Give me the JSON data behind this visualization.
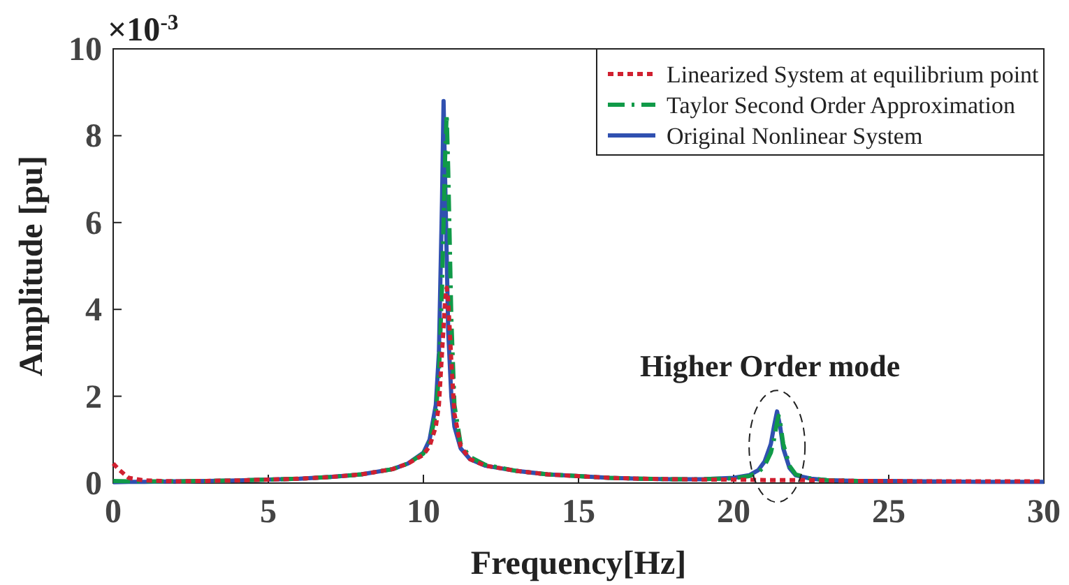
{
  "chart_data": {
    "type": "line",
    "xlabel": "Frequency[Hz]",
    "ylabel": "Amplitude [pu]",
    "xlim": [
      0,
      30
    ],
    "ylim": [
      0,
      10
    ],
    "xticks": [
      0,
      5,
      10,
      15,
      20,
      25,
      30
    ],
    "yticks": [
      0,
      2,
      4,
      6,
      8,
      10
    ],
    "legend": "top right",
    "grid": false,
    "annotations": [
      "×10$^{-3}$",
      {
        "text": "Higher Order mode",
        "x": 21.4,
        "y": 1.65
      }
    ],
    "series": [
      {
        "name": "Linearized System at equilibrium point",
        "color": "#d02030",
        "line_style": "dotted",
        "x": [
          0,
          0.2,
          0.5,
          1,
          2,
          3,
          4,
          5,
          6,
          7,
          8,
          9,
          9.5,
          10,
          10.2,
          10.4,
          10.5,
          10.6,
          10.7,
          10.75,
          10.8,
          10.9,
          11,
          11.2,
          11.5,
          12,
          13,
          14,
          15,
          16,
          17,
          18,
          19,
          20,
          21,
          21.4,
          22,
          23,
          24,
          25,
          26,
          28,
          30
        ],
        "values": [
          0.45,
          0.3,
          0.12,
          0.06,
          0.04,
          0.05,
          0.06,
          0.08,
          0.1,
          0.14,
          0.2,
          0.32,
          0.45,
          0.65,
          0.85,
          1.3,
          1.8,
          3.0,
          4.2,
          4.5,
          4.2,
          2.8,
          1.6,
          0.85,
          0.55,
          0.4,
          0.28,
          0.2,
          0.16,
          0.12,
          0.1,
          0.09,
          0.08,
          0.08,
          0.07,
          0.07,
          0.07,
          0.06,
          0.05,
          0.05,
          0.04,
          0.04,
          0.04
        ]
      },
      {
        "name": "Taylor Second Order Approximation",
        "color": "#109a48",
        "line_style": "dashed",
        "x": [
          0,
          0.5,
          1,
          2,
          3,
          4,
          5,
          6,
          7,
          8,
          9,
          9.5,
          10,
          10.2,
          10.4,
          10.5,
          10.6,
          10.7,
          10.75,
          10.8,
          10.9,
          11,
          11.2,
          11.5,
          12,
          13,
          14,
          15,
          16,
          17,
          18,
          19,
          20,
          20.5,
          20.8,
          21,
          21.2,
          21.3,
          21.4,
          21.45,
          21.5,
          21.6,
          21.8,
          22,
          22.5,
          23,
          24
        ],
        "values": [
          0.05,
          0.04,
          0.04,
          0.04,
          0.05,
          0.06,
          0.08,
          0.1,
          0.14,
          0.2,
          0.32,
          0.45,
          0.68,
          0.95,
          1.6,
          2.5,
          4.5,
          7.5,
          8.5,
          7.2,
          3.8,
          1.8,
          0.9,
          0.6,
          0.42,
          0.28,
          0.2,
          0.16,
          0.12,
          0.1,
          0.09,
          0.09,
          0.11,
          0.16,
          0.25,
          0.4,
          0.7,
          1.0,
          1.4,
          1.55,
          1.4,
          0.9,
          0.4,
          0.2,
          0.1,
          0.07,
          0.05
        ]
      },
      {
        "name": "Original Nonlinear System",
        "color": "#3050b0",
        "line_style": "solid",
        "x": [
          0,
          0.5,
          1,
          2,
          3,
          4,
          5,
          6,
          7,
          8,
          9,
          9.5,
          10,
          10.2,
          10.4,
          10.5,
          10.6,
          10.65,
          10.7,
          10.8,
          10.9,
          11,
          11.2,
          11.5,
          12,
          13,
          14,
          15,
          16,
          17,
          18,
          19,
          20,
          20.5,
          20.8,
          21,
          21.2,
          21.3,
          21.4,
          21.5,
          21.6,
          21.8,
          22,
          22.5,
          23,
          24,
          25,
          26,
          28,
          30
        ],
        "values": [
          0.02,
          0.03,
          0.03,
          0.04,
          0.05,
          0.06,
          0.08,
          0.1,
          0.14,
          0.2,
          0.32,
          0.45,
          0.7,
          1.0,
          1.8,
          3.0,
          6.5,
          8.8,
          7.0,
          3.5,
          2.0,
          1.3,
          0.8,
          0.55,
          0.4,
          0.28,
          0.2,
          0.16,
          0.12,
          0.1,
          0.09,
          0.09,
          0.12,
          0.18,
          0.3,
          0.5,
          0.9,
          1.3,
          1.65,
          1.3,
          0.8,
          0.35,
          0.18,
          0.1,
          0.07,
          0.05,
          0.05,
          0.04,
          0.03,
          0.03
        ]
      }
    ]
  }
}
